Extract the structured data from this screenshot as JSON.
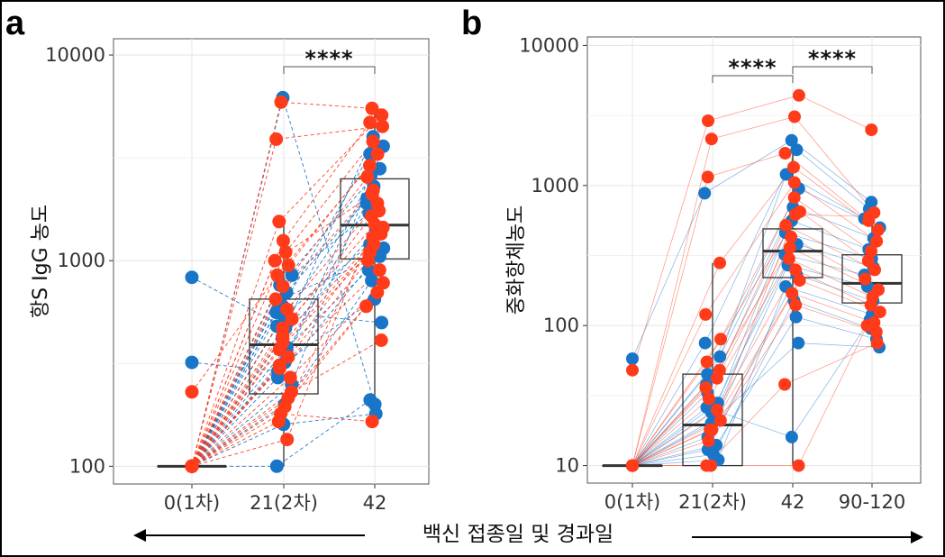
{
  "panel_a_letter": "a",
  "panel_b_letter": "b",
  "bottom_caption": "백신 접종일 및 경과일",
  "colors": {
    "red": "#ff3b1a",
    "blue": "#1875c8",
    "box": "#333333",
    "grid": "#e8e8e8"
  },
  "chart_data": [
    {
      "type": "box+scatter",
      "panel": "a",
      "ylabel": "항S IgG 농도",
      "yscale": "log",
      "ylim": [
        82,
        12000
      ],
      "yticks": [
        100,
        1000,
        10000
      ],
      "ytick_labels": [
        "100",
        "1000",
        "10000"
      ],
      "categories": [
        "0(1차)",
        "21(2차)",
        "42"
      ],
      "significance": [
        {
          "from": "21(2차)",
          "to": "42",
          "label": "****"
        }
      ],
      "boxes": [
        {
          "category": "0(1차)",
          "q1": 100,
          "median": 100,
          "q3": 100,
          "whisker_low": 100,
          "whisker_high": 100
        },
        {
          "category": "21(2차)",
          "q1": 225,
          "median": 390,
          "q3": 650,
          "whisker_low": 100,
          "whisker_high": 1550
        },
        {
          "category": "42",
          "q1": 1020,
          "median": 1490,
          "q3": 2500,
          "whisker_low": 165,
          "whisker_high": 5500
        }
      ],
      "series": [
        {
          "color": "blue",
          "values": [
            [
              100,
              160,
              180
            ],
            [
              100,
              100,
              210
            ],
            [
              100,
              6200,
              200
            ],
            [
              100,
              560,
              500
            ],
            [
              830,
              470,
              4000
            ],
            [
              100,
              760,
              2800
            ],
            [
              100,
              700,
              2000
            ],
            [
              100,
              540,
              1200
            ],
            [
              100,
              380,
              900
            ],
            [
              100,
              320,
              650
            ],
            [
              320,
              290,
              1900
            ],
            [
              100,
              250,
              3600
            ],
            [
              100,
              480,
              2300
            ],
            [
              100,
              850,
              1700
            ],
            [
              100,
              420,
              1400
            ],
            [
              100,
              350,
              2600
            ],
            [
              100,
              270,
              1150
            ],
            [
              100,
              600,
              3300
            ],
            [
              100,
              200,
              800
            ],
            [
              100,
              640,
              1050
            ]
          ]
        },
        {
          "color": "red",
          "values": [
            [
              100,
              5900,
              5500
            ],
            [
              100,
              3900,
              4500
            ],
            [
              100,
              1550,
              5100
            ],
            [
              100,
              1250,
              4700
            ],
            [
              100,
              1100,
              3800
            ],
            [
              100,
              950,
              3300
            ],
            [
              230,
              850,
              2900
            ],
            [
              100,
              750,
              2550
            ],
            [
              100,
              650,
              2200
            ],
            [
              100,
              580,
              1900
            ],
            [
              100,
              520,
              1650
            ],
            [
              100,
              470,
              1500
            ],
            [
              100,
              430,
              1350
            ],
            [
              100,
              400,
              1200
            ],
            [
              100,
              370,
              1100
            ],
            [
              100,
              340,
              1000
            ],
            [
              100,
              300,
              900
            ],
            [
              100,
              270,
              780
            ],
            [
              100,
              230,
              410
            ],
            [
              100,
              215,
              700
            ],
            [
              100,
              195,
              600
            ],
            [
              100,
              180,
              165
            ],
            [
              100,
              165,
              1300
            ],
            [
              100,
              135,
              1750
            ],
            [
              100,
              310,
              1450
            ],
            [
              100,
              1000,
              2100
            ]
          ]
        }
      ]
    },
    {
      "type": "box+scatter",
      "panel": "b",
      "ylabel": "중화항체농도",
      "yscale": "log",
      "ylim": [
        7.5,
        11500
      ],
      "yticks": [
        10,
        100,
        1000,
        10000
      ],
      "ytick_labels": [
        "10",
        "100",
        "1000",
        "10000"
      ],
      "categories": [
        "0(1차)",
        "21(2차)",
        "42",
        "90-120"
      ],
      "significance": [
        {
          "from": "21(2차)",
          "to": "42",
          "label": "****"
        },
        {
          "from": "42",
          "to": "90-120",
          "label": "****"
        }
      ],
      "boxes": [
        {
          "category": "0(1차)",
          "q1": 10,
          "median": 10,
          "q3": 10,
          "whisker_low": 10,
          "whisker_high": 10
        },
        {
          "category": "21(2차)",
          "q1": 10,
          "median": 19.5,
          "q3": 45,
          "whisker_low": 10,
          "whisker_high": 280
        },
        {
          "category": "42",
          "q1": 220,
          "median": 340,
          "q3": 490,
          "whisker_low": 10,
          "whisker_high": 2100
        },
        {
          "category": "90-120",
          "q1": 145,
          "median": 200,
          "q3": 320,
          "whisker_low": 70,
          "whisker_high": 760
        }
      ],
      "series": [
        {
          "color": "blue",
          "values": [
            [
              58,
              880,
              2100,
              760
            ],
            [
              10,
              75,
              1800,
              680
            ],
            [
              10,
              60,
              1200,
              580
            ],
            [
              10,
              45,
              950,
              500
            ],
            [
              10,
              38,
              700,
              420
            ],
            [
              10,
              33,
              560,
              350
            ],
            [
              10,
              28,
              460,
              300
            ],
            [
              10,
              24,
              380,
              260
            ],
            [
              10,
              20,
              320,
              230
            ],
            [
              10,
              16,
              270,
              190
            ],
            [
              10,
              13,
              230,
              150
            ],
            [
              10,
              11,
              190,
              120
            ],
            [
              10,
              12,
              150,
              95
            ],
            [
              10,
              14,
              115,
              80
            ],
            [
              10,
              22,
              75,
              70
            ],
            [
              10,
              26,
              16,
              110
            ]
          ]
        },
        {
          "color": "red",
          "values": [
            [
              48,
              2900,
              4400,
              2500
            ],
            [
              10,
              2150,
              3100,
              640
            ],
            [
              10,
              1150,
              1700,
              560
            ],
            [
              10,
              280,
              1350,
              480
            ],
            [
              10,
              120,
              1050,
              400
            ],
            [
              10,
              80,
              820,
              340
            ],
            [
              10,
              55,
              650,
              290
            ],
            [
              10,
              48,
              520,
              250
            ],
            [
              10,
              42,
              430,
              215
            ],
            [
              10,
              36,
              360,
              180
            ],
            [
              10,
              30,
              300,
              160
            ],
            [
              10,
              25,
              250,
              140
            ],
            [
              10,
              21,
              210,
              125
            ],
            [
              10,
              18,
              170,
              105
            ],
            [
              10,
              15,
              140,
              90
            ],
            [
              10,
              10,
              38,
              75
            ],
            [
              10,
              10,
              10,
              100
            ],
            [
              10,
              18,
              620,
              600
            ]
          ]
        }
      ]
    }
  ]
}
